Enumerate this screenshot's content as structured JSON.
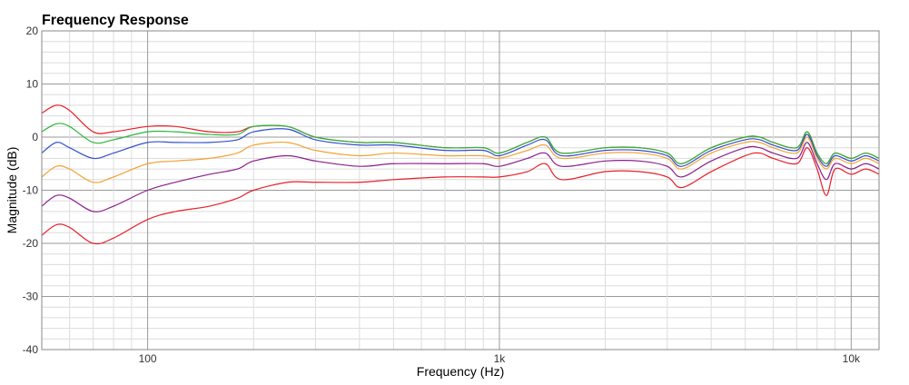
{
  "chart_data": {
    "type": "line",
    "title": "Frequency Response",
    "xlabel": "Frequency (Hz)",
    "ylabel": "Magnitude (dB)",
    "x_scale": "log",
    "xlim": [
      50,
      12000
    ],
    "ylim": [
      -40,
      20
    ],
    "y_ticks": [
      20,
      10,
      0,
      -10,
      -20,
      -30,
      -40
    ],
    "x_ticks": [
      {
        "value": 100,
        "label": "100"
      },
      {
        "value": 1000,
        "label": "1k"
      },
      {
        "value": 10000,
        "label": "10k"
      }
    ],
    "grid": true,
    "legend": "none",
    "x": [
      50,
      55,
      60,
      70,
      80,
      100,
      120,
      150,
      180,
      200,
      250,
      300,
      400,
      500,
      700,
      900,
      1000,
      1200,
      1350,
      1500,
      2000,
      2500,
      3000,
      3300,
      4000,
      5000,
      5500,
      6000,
      7000,
      7500,
      8000,
      8500,
      9000,
      10000,
      11000,
      12000
    ],
    "series": [
      {
        "color": "#e8202a",
        "values": [
          4.5,
          6,
          5,
          1,
          1,
          2,
          2,
          1,
          1,
          2,
          2,
          0,
          -1,
          -1,
          -2,
          -2,
          -3,
          -1,
          0,
          -3,
          -2,
          -2,
          -3,
          -5,
          -2,
          0,
          0,
          -1,
          -2,
          1,
          -3,
          -5,
          -3,
          -4,
          -3,
          -4
        ]
      },
      {
        "color": "#2cb63c",
        "values": [
          1,
          2.5,
          2,
          -1,
          -0.5,
          1,
          1,
          0.5,
          0.5,
          2,
          2,
          0,
          -1,
          -1,
          -2,
          -2,
          -3,
          -1,
          0,
          -3,
          -2,
          -2,
          -3,
          -5,
          -2,
          0,
          0,
          -1,
          -2,
          1,
          -3,
          -5,
          -3,
          -4,
          -3,
          -4
        ]
      },
      {
        "color": "#3450c8",
        "values": [
          -3,
          -1,
          -2,
          -4,
          -3,
          -1,
          -1,
          -1,
          -0.5,
          1,
          1.5,
          -0.5,
          -1.5,
          -1.5,
          -2.5,
          -2.5,
          -3.5,
          -1.5,
          -0.5,
          -3.5,
          -2.5,
          -2.5,
          -3.5,
          -5.5,
          -2.5,
          -0.5,
          -0.5,
          -1.5,
          -2.5,
          0.5,
          -3.5,
          -5.5,
          -3.5,
          -4.5,
          -3.5,
          -4.5
        ]
      },
      {
        "color": "#f2a336",
        "values": [
          -7.5,
          -5.5,
          -6,
          -8.5,
          -7.5,
          -5,
          -4.5,
          -4,
          -3,
          -1.5,
          -1,
          -2.5,
          -3.5,
          -3,
          -3.5,
          -3.5,
          -4,
          -2.5,
          -1.5,
          -4,
          -3,
          -3,
          -4,
          -6,
          -3,
          -1,
          -1,
          -2,
          -3,
          0,
          -4,
          -6,
          -4,
          -5,
          -4,
          -5
        ]
      },
      {
        "color": "#8c1e8c",
        "values": [
          -13,
          -11,
          -11.5,
          -14,
          -13,
          -10,
          -8.5,
          -7,
          -6,
          -4.5,
          -3.5,
          -4.5,
          -5.5,
          -5,
          -5,
          -5,
          -5.5,
          -4,
          -3,
          -5.5,
          -4.5,
          -4.5,
          -5.5,
          -7.5,
          -4.5,
          -2,
          -2,
          -3,
          -4,
          -1,
          -5,
          -8,
          -5,
          -6,
          -5,
          -6
        ]
      },
      {
        "color": "#e8202a",
        "values": [
          -18.5,
          -16.5,
          -17,
          -20,
          -19,
          -15.5,
          -14,
          -13,
          -11.5,
          -10,
          -8.5,
          -8.5,
          -8.5,
          -8,
          -7.5,
          -7.5,
          -7.5,
          -6.5,
          -5,
          -8,
          -6.5,
          -6.5,
          -7.5,
          -9.5,
          -6.5,
          -3.5,
          -3,
          -4,
          -5,
          -2,
          -6,
          -11,
          -6,
          -7,
          -6,
          -7
        ]
      }
    ]
  }
}
